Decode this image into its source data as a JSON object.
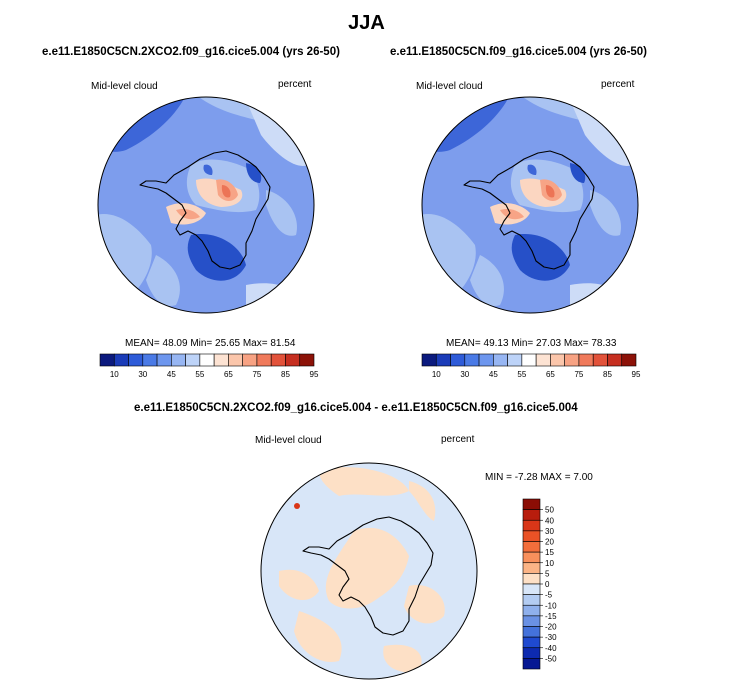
{
  "title": "JJA",
  "panels": [
    {
      "case_title": "e.e11.E1850C5CN.2XCO2.f09_g16.cice5.004 (yrs 26-50)",
      "variable": "Mid-level cloud",
      "units": "percent",
      "stats_text": "MEAN=  48.09  Min=  25.65  Max=  81.54",
      "stats": {
        "mean": 48.09,
        "min": 25.65,
        "max": 81.54
      }
    },
    {
      "case_title": "e.e11.E1850C5CN.f09_g16.cice5.004 (yrs 26-50)",
      "variable": "Mid-level cloud",
      "units": "percent",
      "stats_text": "MEAN=  49.13  Min=  27.03  Max=  78.33",
      "stats": {
        "mean": 49.13,
        "min": 27.03,
        "max": 78.33
      }
    }
  ],
  "colorbar": {
    "tick_labels": [
      "10",
      "30",
      "45",
      "55",
      "65",
      "75",
      "85",
      "95"
    ],
    "colors": [
      "#0b1a7e",
      "#1a3bb8",
      "#2e5bd8",
      "#4a7ae6",
      "#6d96ee",
      "#97b6f3",
      "#bdd3f8",
      "#ffffff",
      "#fde3d3",
      "#fbc6ab",
      "#f7a283",
      "#f07a5b",
      "#e2523a",
      "#c62f20",
      "#8c1208"
    ]
  },
  "difference": {
    "title": "e.e11.E1850C5CN.2XCO2.f09_g16.cice5.004 - e.e11.E1850C5CN.f09_g16.cice5.004",
    "variable": "Mid-level cloud",
    "units": "percent",
    "minmax_text": "MIN = -7.28  MAX =  7.00",
    "stats": {
      "min": -7.28,
      "max": 7.0
    },
    "colorbar": {
      "tick_labels": [
        "50",
        "40",
        "30",
        "20",
        "15",
        "10",
        "5",
        "0",
        "-5",
        "-10",
        "-15",
        "-20",
        "-30",
        "-40",
        "-50"
      ],
      "colors": [
        "#8b0d05",
        "#b81d0d",
        "#d93618",
        "#ea5226",
        "#f36e3b",
        "#f8905c",
        "#fbb486",
        "#fde0c6",
        "#d8e6f8",
        "#b3ccf2",
        "#8fb0ec",
        "#6a91e4",
        "#4472db",
        "#1f4ad0",
        "#0d2ab0",
        "#061893"
      ]
    }
  },
  "field_colors": {
    "base": "#7d9ded",
    "dark": "#3d66d8",
    "darker": "#2650c8",
    "light": "#a9c3f2",
    "pale": "#cddcf7",
    "warm1": "#fbd6c1",
    "warm2": "#f7a486",
    "warm3": "#ec7456",
    "coast": "#000000",
    "diff_base": "#d8e6f8",
    "diff_warm": "#fde0c6"
  }
}
